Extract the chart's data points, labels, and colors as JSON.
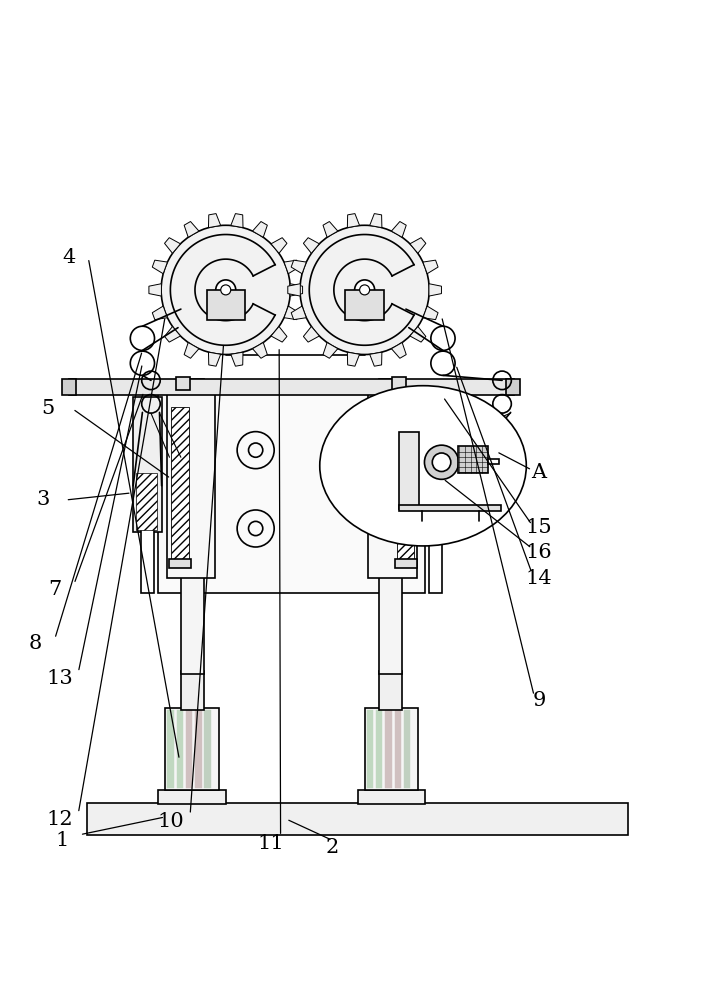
{
  "bg_color": "#ffffff",
  "line_color": "#000000",
  "label_color": "#000000",
  "figsize": [
    7.15,
    10.0
  ],
  "dpi": 100
}
